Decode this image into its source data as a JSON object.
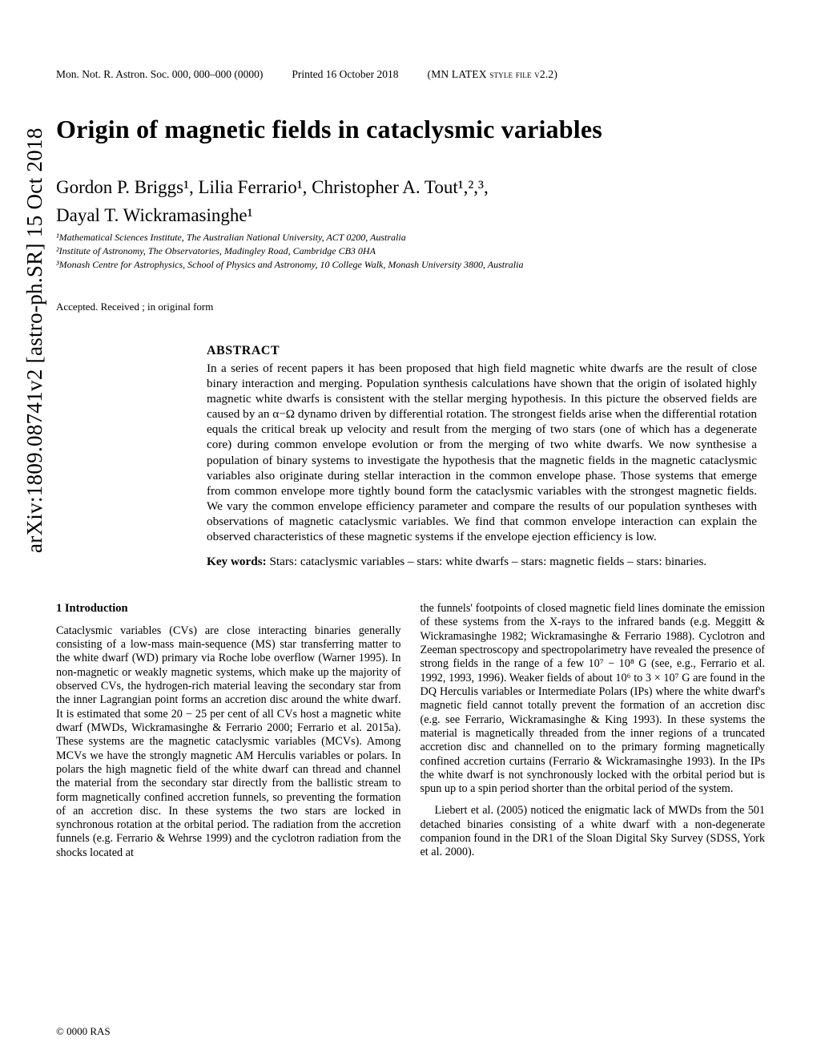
{
  "arxiv": "arXiv:1809.08741v2  [astro-ph.SR]  15 Oct 2018",
  "header": {
    "journal": "Mon. Not. R. Astron. Soc. 000, 000–000 (0000)",
    "printed": "Printed 16 October 2018",
    "style": "(MN LATEX style file v2.2)"
  },
  "title": "Origin of magnetic fields in cataclysmic variables",
  "authors_line1": "Gordon P. Briggs¹, Lilia Ferrario¹, Christopher A. Tout¹,²,³,",
  "authors_line2": "Dayal T. Wickramasinghe¹",
  "affiliations": [
    "¹Mathematical Sciences Institute, The Australian National University, ACT 0200, Australia",
    "²Institute of Astronomy, The Observatories, Madingley Road, Cambridge CB3 0HA",
    "³Monash Centre for Astrophysics, School of Physics and Astronomy, 10 College Walk, Monash University 3800, Australia"
  ],
  "accepted": "Accepted. Received ; in original form",
  "abstract": {
    "heading": "ABSTRACT",
    "text": "In a series of recent papers it has been proposed that high field magnetic white dwarfs are the result of close binary interaction and merging. Population synthesis calculations have shown that the origin of isolated highly magnetic white dwarfs is consistent with the stellar merging hypothesis. In this picture the observed fields are caused by an α−Ω dynamo driven by differential rotation. The strongest fields arise when the differential rotation equals the critical break up velocity and result from the merging of two stars (one of which has a degenerate core) during common envelope evolution or from the merging of two white dwarfs. We now synthesise a population of binary systems to investigate the hypothesis that the magnetic fields in the magnetic cataclysmic variables also originate during stellar interaction in the common envelope phase. Those systems that emerge from common envelope more tightly bound form the cataclysmic variables with the strongest magnetic fields. We vary the common envelope efficiency parameter and compare the results of our population syntheses with observations of magnetic cataclysmic variables. We find that common envelope interaction can explain the observed characteristics of these magnetic systems if the envelope ejection efficiency is low.",
    "keywords_label": "Key words:",
    "keywords": " Stars: cataclysmic variables – stars: white dwarfs – stars: magnetic fields – stars: binaries."
  },
  "section1": {
    "heading": "1   Introduction",
    "left_col": "Cataclysmic variables (CVs) are close interacting binaries generally consisting of a low-mass main-sequence (MS) star transferring matter to the white dwarf (WD) primary via Roche lobe overflow (Warner 1995). In non-magnetic or weakly magnetic systems, which make up the majority of observed CVs, the hydrogen-rich material leaving the secondary star from the inner Lagrangian point forms an accretion disc around the white dwarf. It is estimated that some 20 − 25 per cent of all CVs host a magnetic white dwarf (MWDs, Wickramasinghe & Ferrario 2000; Ferrario et al. 2015a). These systems are the magnetic cataclysmic variables (MCVs). Among MCVs we have the strongly magnetic AM Herculis variables or polars. In polars the high magnetic field of the white dwarf can thread and channel the material from the secondary star directly from the ballistic stream to form magnetically confined accretion funnels, so preventing the formation of an accretion disc. In these systems the two stars are locked in synchronous rotation at the orbital period. The radiation from the accretion funnels (e.g. Ferrario & Wehrse 1999) and the cyclotron radiation from the shocks located at",
    "right_col_p1": "the funnels' footpoints of closed magnetic field lines dominate the emission of these systems from the X-rays to the infrared bands (e.g. Meggitt & Wickramasinghe 1982; Wickramasinghe & Ferrario 1988). Cyclotron and Zeeman spectroscopy and spectropolarimetry have revealed the presence of strong fields in the range of a few 10⁷ − 10⁸ G (see, e.g., Ferrario et al. 1992, 1993, 1996). Weaker fields of about 10⁶ to 3 × 10⁷ G are found in the DQ Herculis variables or Intermediate Polars (IPs) where the white dwarf's magnetic field cannot totally prevent the formation of an accretion disc (e.g. see Ferrario, Wickramasinghe & King 1993). In these systems the material is magnetically threaded from the inner regions of a truncated accretion disc and channelled on to the primary forming magnetically confined accretion curtains (Ferrario & Wickramasinghe 1993). In the IPs the white dwarf is not synchronously locked with the orbital period but is spun up to a spin period shorter than the orbital period of the system.",
    "right_col_p2": "Liebert et al. (2005) noticed the enigmatic lack of MWDs from the 501 detached binaries consisting of a white dwarf with a non-degenerate companion found in the DR1 of the Sloan Digital Sky Survey (SDSS, York et al. 2000)."
  },
  "copyright": "© 0000 RAS"
}
